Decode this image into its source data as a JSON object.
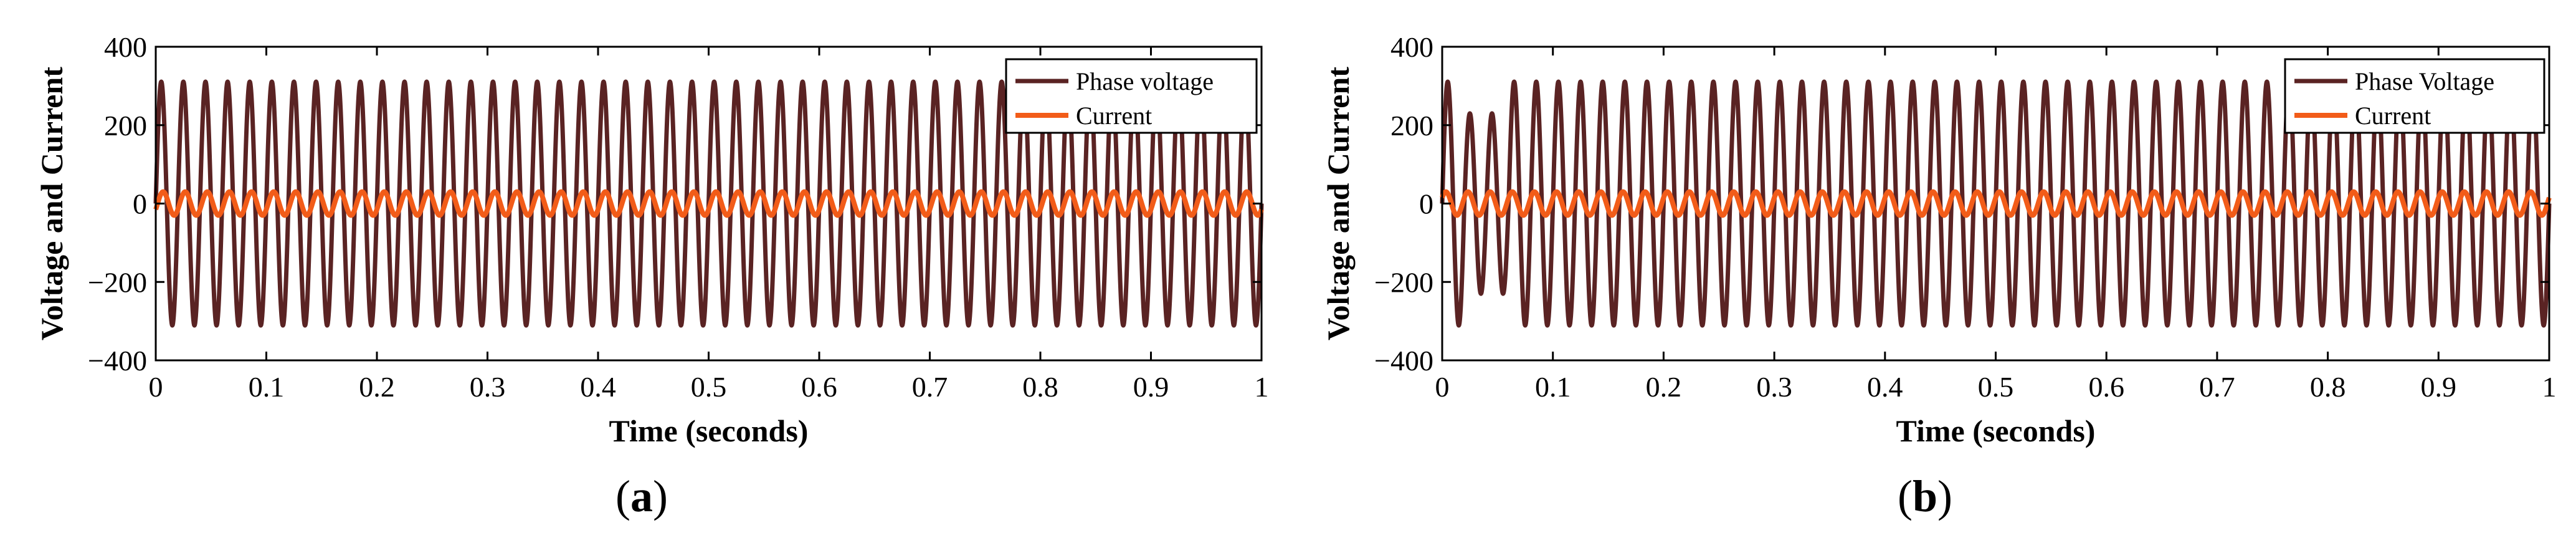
{
  "chart_data": [
    {
      "id": "a",
      "type": "line",
      "caption_prefix": "(",
      "caption_letter": "a",
      "caption_suffix": ")",
      "xlabel": "Time (seconds)",
      "ylabel": "Voltage and Current",
      "xlim": [
        0,
        1
      ],
      "ylim": [
        -400,
        400
      ],
      "xticks": [
        0,
        0.1,
        0.2,
        0.3,
        0.4,
        0.5,
        0.6,
        0.7,
        0.8,
        0.9,
        1
      ],
      "xtick_labels": [
        "0",
        "0.1",
        "0.2",
        "0.3",
        "0.4",
        "0.5",
        "0.6",
        "0.7",
        "0.8",
        "0.9",
        "1"
      ],
      "yticks": [
        400,
        200,
        0,
        -200,
        -400
      ],
      "ytick_labels": [
        "400",
        "200",
        "0",
        "−200",
        "−400"
      ],
      "grid": false,
      "legend_position": "top-right",
      "series": [
        {
          "name": "Phase voltage",
          "color": "#5a2323",
          "amplitude": 311,
          "frequency_hz": 50,
          "phase_deg": 0,
          "offset": 0,
          "transient": null
        },
        {
          "name": "Current",
          "color": "#f25c19",
          "amplitude": 30,
          "frequency_hz": 50,
          "phase_deg": -30,
          "offset": 0,
          "transient": null
        }
      ]
    },
    {
      "id": "b",
      "type": "line",
      "caption_prefix": "(",
      "caption_letter": "b",
      "caption_suffix": ")",
      "xlabel": "Time (seconds)",
      "ylabel": "Voltage and Current",
      "xlim": [
        0,
        1
      ],
      "ylim": [
        -400,
        400
      ],
      "xticks": [
        0,
        0.1,
        0.2,
        0.3,
        0.4,
        0.5,
        0.6,
        0.7,
        0.8,
        0.9,
        1
      ],
      "xtick_labels": [
        "0",
        "0.1",
        "0.2",
        "0.3",
        "0.4",
        "0.5",
        "0.6",
        "0.7",
        "0.8",
        "0.9",
        "1"
      ],
      "yticks": [
        400,
        200,
        0,
        -200,
        -400
      ],
      "ytick_labels": [
        "400",
        "200",
        "0",
        "−200",
        "−400"
      ],
      "grid": false,
      "legend_position": "top-right",
      "series": [
        {
          "name": "Phase Voltage",
          "color": "#5a2323",
          "amplitude": 311,
          "frequency_hz": 50,
          "phase_deg": 0,
          "offset": 0,
          "transient": {
            "start": 0.02,
            "end": 0.06,
            "amplitude": 230
          }
        },
        {
          "name": "Current",
          "color": "#f25c19",
          "amplitude": 30,
          "frequency_hz": 50,
          "phase_deg": 30,
          "offset": 0,
          "transient": null
        }
      ]
    }
  ]
}
